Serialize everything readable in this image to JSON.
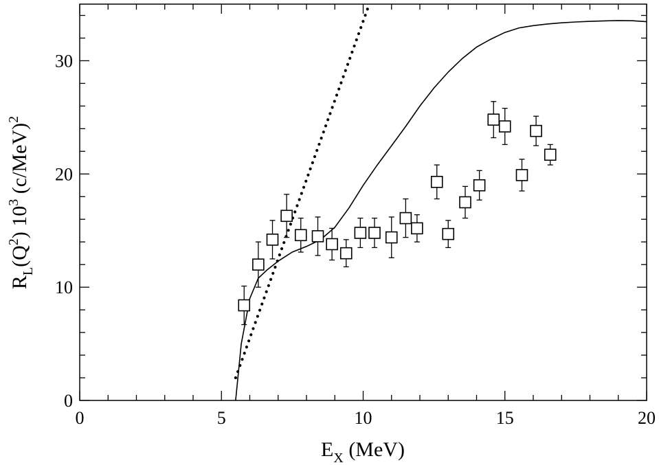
{
  "chart_data": {
    "type": "scatter",
    "title": "",
    "xlabel": {
      "main": "E",
      "sub": "X",
      "rest": " (MeV)"
    },
    "ylabel": {
      "r": "R",
      "sub_l": "L",
      "open": "(Q",
      "sup_2": "2",
      "close": ") 10",
      "sup_3": "3",
      "unit": " (c/MeV)",
      "sup_unit": "2"
    },
    "xlim": [
      0,
      20
    ],
    "ylim": [
      0,
      35
    ],
    "x_ticks": [
      0,
      5,
      10,
      15,
      20
    ],
    "y_ticks": [
      0,
      10,
      20,
      30
    ],
    "x_minor_step": 1,
    "y_minor_step": 2,
    "series": [
      {
        "name": "data",
        "style": "open-square-with-error-bars",
        "points": [
          {
            "x": 5.8,
            "y": 8.4,
            "err": 1.7
          },
          {
            "x": 6.3,
            "y": 12.0,
            "err": 2.0
          },
          {
            "x": 6.8,
            "y": 14.2,
            "err": 1.7
          },
          {
            "x": 7.3,
            "y": 16.3,
            "err": 1.9
          },
          {
            "x": 7.8,
            "y": 14.6,
            "err": 1.5
          },
          {
            "x": 8.4,
            "y": 14.5,
            "err": 1.7
          },
          {
            "x": 8.9,
            "y": 13.8,
            "err": 1.4
          },
          {
            "x": 9.4,
            "y": 13.0,
            "err": 1.2
          },
          {
            "x": 9.9,
            "y": 14.8,
            "err": 1.3
          },
          {
            "x": 10.4,
            "y": 14.8,
            "err": 1.3
          },
          {
            "x": 11.0,
            "y": 14.4,
            "err": 1.8
          },
          {
            "x": 11.5,
            "y": 16.1,
            "err": 1.7
          },
          {
            "x": 11.9,
            "y": 15.2,
            "err": 1.2
          },
          {
            "x": 12.6,
            "y": 19.3,
            "err": 1.5
          },
          {
            "x": 13.0,
            "y": 14.7,
            "err": 1.2
          },
          {
            "x": 13.6,
            "y": 17.5,
            "err": 1.4
          },
          {
            "x": 14.1,
            "y": 19.0,
            "err": 1.3
          },
          {
            "x": 14.6,
            "y": 24.8,
            "err": 1.6
          },
          {
            "x": 15.0,
            "y": 24.2,
            "err": 1.6
          },
          {
            "x": 15.6,
            "y": 19.9,
            "err": 1.4
          },
          {
            "x": 16.1,
            "y": 23.8,
            "err": 1.3
          },
          {
            "x": 16.6,
            "y": 21.7,
            "err": 0.9
          }
        ]
      },
      {
        "name": "calculation-solid",
        "style": "solid-line",
        "x": [
          5.5,
          5.7,
          6.0,
          6.3,
          6.6,
          7.0,
          7.5,
          8.0,
          8.5,
          9.0,
          9.5,
          10.0,
          10.5,
          11.0,
          11.5,
          12.0,
          12.5,
          13.0,
          13.5,
          14.0,
          14.5,
          15.0,
          15.5,
          16.0,
          16.5,
          17.0,
          17.5,
          18.0,
          18.5,
          19.0,
          19.5,
          20.0
        ],
        "y": [
          0.0,
          5.0,
          9.0,
          10.8,
          11.5,
          12.3,
          13.1,
          13.6,
          14.2,
          15.3,
          17.0,
          19.0,
          20.8,
          22.5,
          24.2,
          26.0,
          27.6,
          29.0,
          30.2,
          31.2,
          31.9,
          32.5,
          32.9,
          33.1,
          33.25,
          33.35,
          33.42,
          33.48,
          33.52,
          33.55,
          33.53,
          33.45
        ]
      },
      {
        "name": "calculation-dotted",
        "style": "dotted-line",
        "x": [
          5.5,
          10.2
        ],
        "y": [
          2.0,
          34.9
        ]
      }
    ]
  }
}
